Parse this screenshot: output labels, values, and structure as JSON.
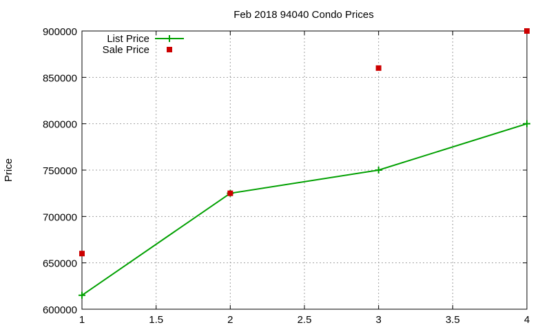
{
  "chart_data": {
    "type": "line",
    "title": "Feb 2018 94040 Condo Prices",
    "xlabel": "",
    "ylabel": "Price",
    "xlim": [
      1,
      4
    ],
    "ylim": [
      600000,
      900000
    ],
    "xticks": [
      "1",
      "1.5",
      "2",
      "2.5",
      "3",
      "3.5",
      "4"
    ],
    "yticks": [
      "600000",
      "650000",
      "700000",
      "750000",
      "800000",
      "850000",
      "900000"
    ],
    "grid": true,
    "legend_position": "top-left",
    "series": [
      {
        "name": "List Price",
        "style": "linespoints",
        "color": "#00a000",
        "x": [
          1,
          2,
          3,
          4
        ],
        "y": [
          615000,
          725000,
          750000,
          800000
        ]
      },
      {
        "name": "Sale Price",
        "style": "points",
        "color": "#cc0000",
        "x": [
          1,
          2,
          3,
          4
        ],
        "y": [
          660000,
          725000,
          860000,
          900000
        ]
      }
    ]
  }
}
